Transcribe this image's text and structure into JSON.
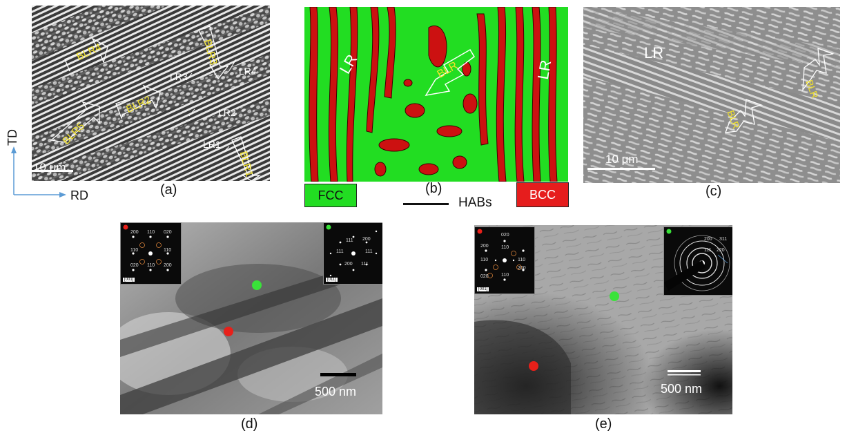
{
  "panel_a": {
    "labels": [
      "BLR4",
      "BLR3",
      "LR4",
      "LR3",
      "BLR2",
      "LR2",
      "BLR5",
      "LR1",
      "BLR1"
    ],
    "scale": "10 μm",
    "caption": "(a)"
  },
  "axes": {
    "td": "TD",
    "rd": "RD"
  },
  "panel_b": {
    "labels": [
      "LR",
      "BLR",
      "LR"
    ],
    "caption": "(b)",
    "legend": {
      "fcc": "FCC",
      "habs": "HABs",
      "bcc": "BCC"
    },
    "colors": {
      "fcc": "#22dd22",
      "bcc": "#cc1111"
    }
  },
  "panel_c": {
    "labels": [
      "LR",
      "BLR",
      "BLR"
    ],
    "scale": "10 μm",
    "caption": "(c)"
  },
  "panel_d": {
    "scale": "500 nm",
    "caption": "(d)",
    "inset_left": {
      "zone": "[001]",
      "indices": [
        "200",
        "110",
        "020",
        "110",
        "110",
        "020",
        "110",
        "200"
      ]
    },
    "inset_right": {
      "zone": "[011]",
      "indices": [
        "111",
        "200",
        "111",
        "111",
        "200",
        "111"
      ]
    }
  },
  "panel_e": {
    "scale": "500 nm",
    "caption": "(e)",
    "inset_left": {
      "zone": "[001]",
      "indices": [
        "020",
        "200",
        "110",
        "110",
        "110",
        "200",
        "020",
        "110"
      ]
    },
    "inset_right": {
      "indices": [
        "200",
        "311",
        "111",
        "220"
      ]
    }
  },
  "marker_colors": {
    "red": "#e8201a",
    "green": "#39e239"
  }
}
